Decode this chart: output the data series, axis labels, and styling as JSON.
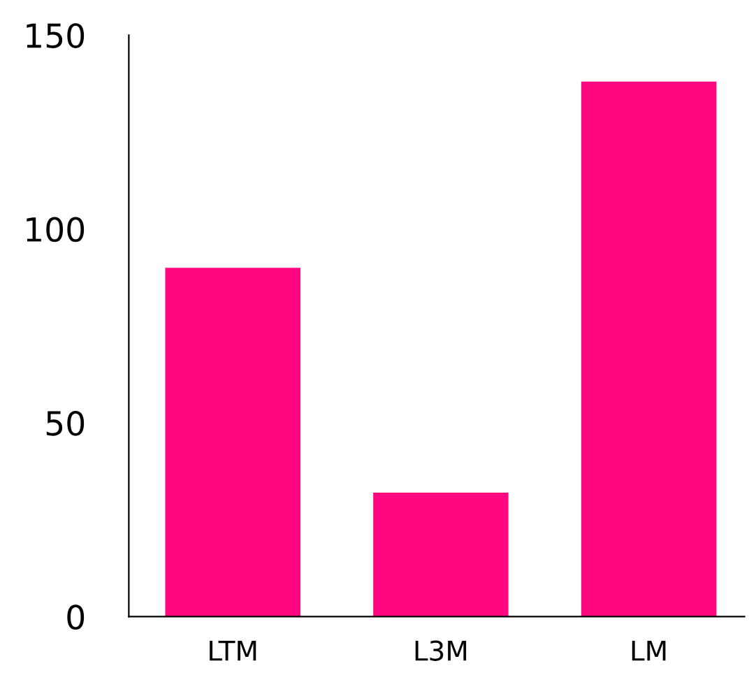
{
  "chart_data": {
    "type": "bar",
    "categories": [
      "LTM",
      "L3M",
      "LM"
    ],
    "values": [
      90,
      32,
      138
    ],
    "color": "#ff0780",
    "ylim": [
      0,
      150
    ],
    "yticks": [
      0,
      50,
      100,
      150
    ],
    "grid": false,
    "legend": false
  }
}
